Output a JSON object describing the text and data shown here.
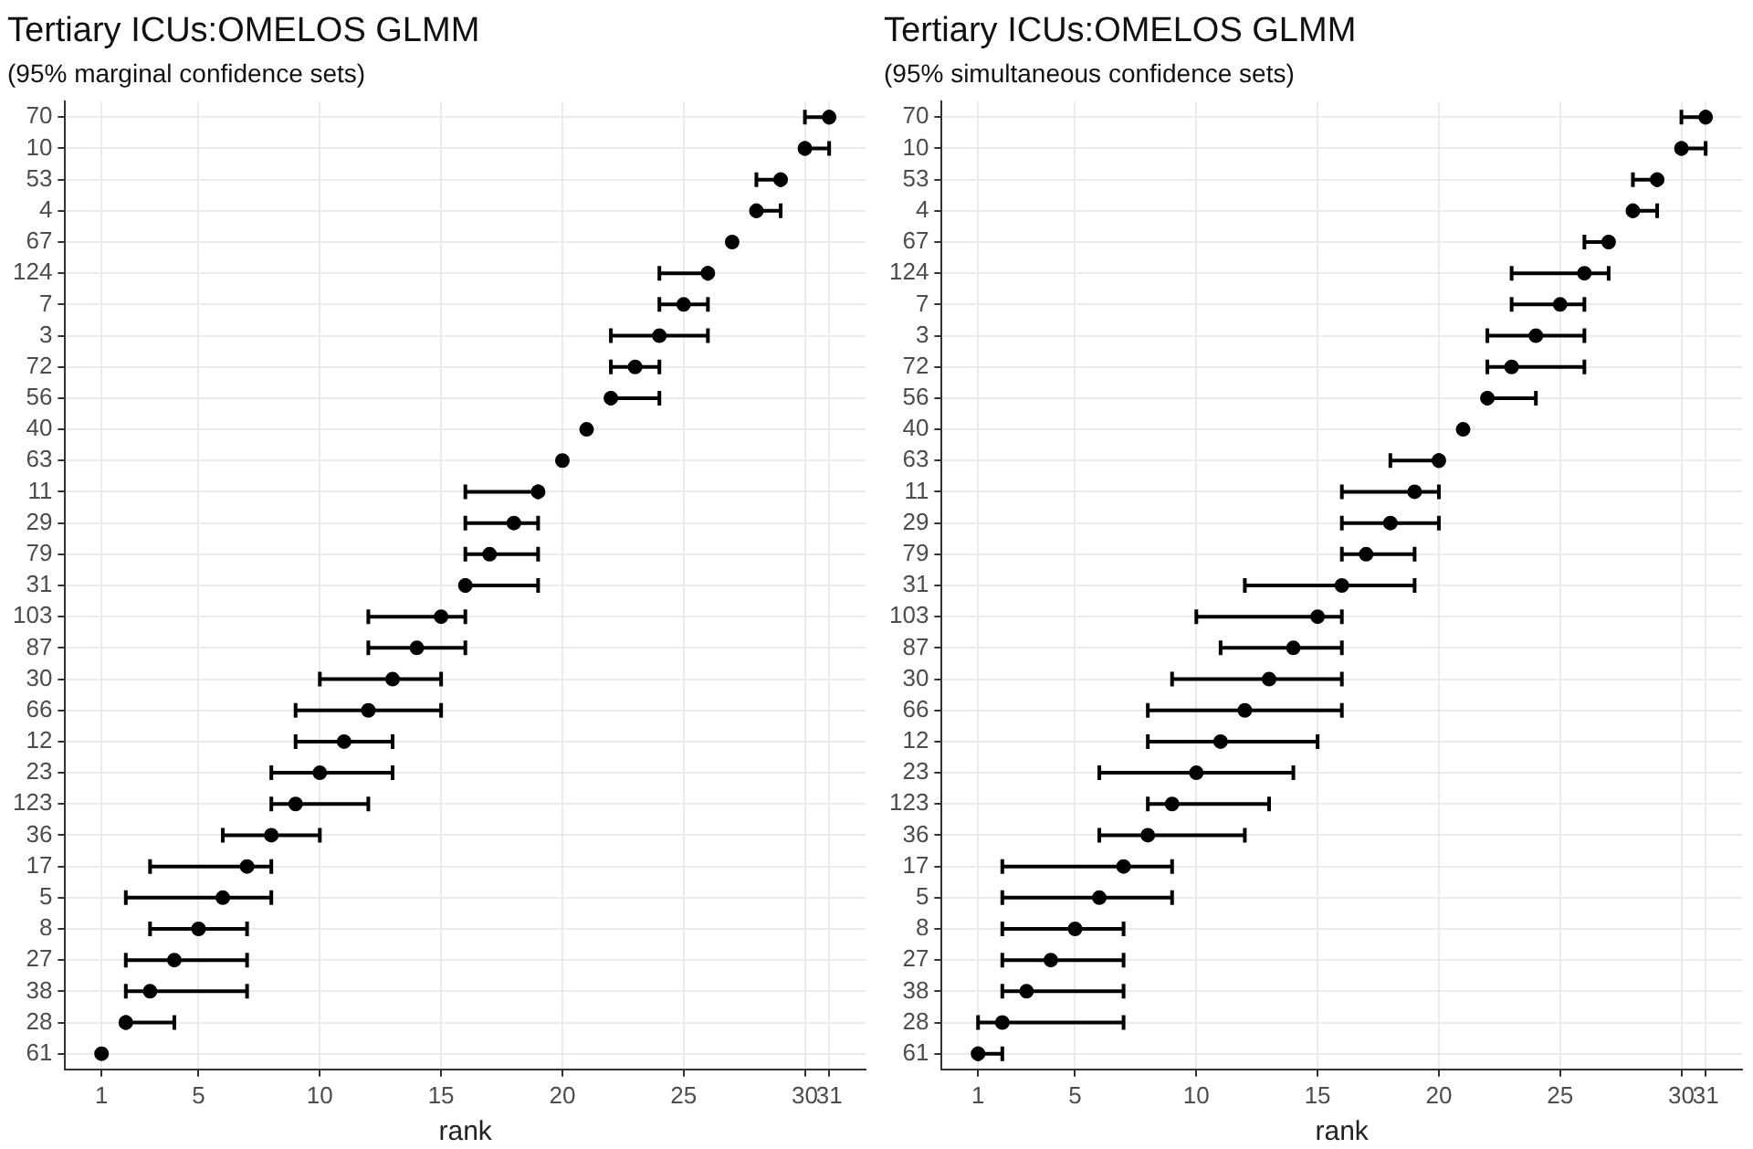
{
  "chart_data": [
    {
      "type": "scatter",
      "orientation": "horizontal",
      "title": "Tertiary ICUs:OMELOS GLMM",
      "subtitle": "(95% marginal confidence sets)",
      "xlabel": "rank",
      "categories": [
        "70",
        "10",
        "53",
        "4",
        "67",
        "124",
        "7",
        "3",
        "72",
        "56",
        "40",
        "63",
        "11",
        "29",
        "79",
        "31",
        "103",
        "87",
        "30",
        "66",
        "12",
        "23",
        "123",
        "36",
        "17",
        "5",
        "8",
        "27",
        "38",
        "28",
        "61"
      ],
      "values": [
        31,
        30,
        29,
        28,
        27,
        26,
        25,
        24,
        23,
        22,
        21,
        20,
        19,
        18,
        17,
        16,
        15,
        14,
        13,
        12,
        11,
        10,
        9,
        8,
        7,
        6,
        5,
        4,
        3,
        2,
        1
      ],
      "errors": [
        [
          30,
          31
        ],
        [
          30,
          31
        ],
        [
          28,
          29
        ],
        [
          28,
          29
        ],
        null,
        [
          24,
          26
        ],
        [
          24,
          26
        ],
        [
          22,
          26
        ],
        [
          22,
          24
        ],
        [
          22,
          24
        ],
        null,
        null,
        [
          16,
          19
        ],
        [
          16,
          19
        ],
        [
          16,
          19
        ],
        [
          16,
          19
        ],
        [
          12,
          16
        ],
        [
          12,
          16
        ],
        [
          10,
          15
        ],
        [
          9,
          15
        ],
        [
          9,
          13
        ],
        [
          8,
          13
        ],
        [
          8,
          12
        ],
        [
          6,
          10
        ],
        [
          3,
          8
        ],
        [
          2,
          8
        ],
        [
          3,
          7
        ],
        [
          2,
          7
        ],
        [
          2,
          7
        ],
        [
          2,
          4
        ],
        null
      ],
      "color": "#000000",
      "marker": "circle",
      "xlim": [
        -0.5,
        32.5
      ],
      "xticks": [
        1,
        5,
        10,
        15,
        20,
        25,
        30,
        31
      ],
      "grid": true
    },
    {
      "type": "scatter",
      "orientation": "horizontal",
      "title": "Tertiary ICUs:OMELOS GLMM",
      "subtitle": "(95% simultaneous confidence sets)",
      "xlabel": "rank",
      "categories": [
        "70",
        "10",
        "53",
        "4",
        "67",
        "124",
        "7",
        "3",
        "72",
        "56",
        "40",
        "63",
        "11",
        "29",
        "79",
        "31",
        "103",
        "87",
        "30",
        "66",
        "12",
        "23",
        "123",
        "36",
        "17",
        "5",
        "8",
        "27",
        "38",
        "28",
        "61"
      ],
      "values": [
        31,
        30,
        29,
        28,
        27,
        26,
        25,
        24,
        23,
        22,
        21,
        20,
        19,
        18,
        17,
        16,
        15,
        14,
        13,
        12,
        11,
        10,
        9,
        8,
        7,
        6,
        5,
        4,
        3,
        2,
        1
      ],
      "errors": [
        [
          30,
          31
        ],
        [
          30,
          31
        ],
        [
          28,
          29
        ],
        [
          28,
          29
        ],
        [
          26,
          27
        ],
        [
          23,
          27
        ],
        [
          23,
          26
        ],
        [
          22,
          26
        ],
        [
          22,
          26
        ],
        [
          22,
          24
        ],
        null,
        [
          18,
          20
        ],
        [
          16,
          20
        ],
        [
          16,
          20
        ],
        [
          16,
          19
        ],
        [
          12,
          19
        ],
        [
          10,
          16
        ],
        [
          11,
          16
        ],
        [
          9,
          16
        ],
        [
          8,
          16
        ],
        [
          8,
          15
        ],
        [
          6,
          14
        ],
        [
          8,
          13
        ],
        [
          6,
          12
        ],
        [
          2,
          9
        ],
        [
          2,
          9
        ],
        [
          2,
          7
        ],
        [
          2,
          7
        ],
        [
          2,
          7
        ],
        [
          1,
          7
        ],
        [
          1,
          2
        ]
      ],
      "color": "#000000",
      "marker": "circle",
      "xlim": [
        -0.5,
        32.5
      ],
      "xticks": [
        1,
        5,
        10,
        15,
        20,
        25,
        30,
        31
      ],
      "grid": true
    }
  ]
}
